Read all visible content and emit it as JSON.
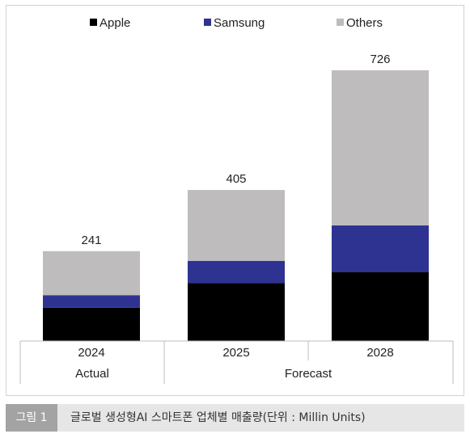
{
  "chart_data": {
    "type": "bar",
    "stacked": true,
    "categories": [
      "2024",
      "2025",
      "2028"
    ],
    "groups": [
      {
        "label": "Actual",
        "categories": [
          "2024"
        ]
      },
      {
        "label": "Forecast",
        "categories": [
          "2025",
          "2028"
        ]
      }
    ],
    "series": [
      {
        "name": "Apple",
        "color": "#000000",
        "values": [
          89,
          155,
          185
        ]
      },
      {
        "name": "Samsung",
        "color": "#2e3392",
        "values": [
          34,
          60,
          125
        ]
      },
      {
        "name": "Others",
        "color": "#bfbcbd",
        "values": [
          118,
          190,
          416
        ]
      }
    ],
    "totals": [
      "241",
      "405",
      "726"
    ],
    "ylim": [
      0,
      780
    ],
    "grid": false,
    "legend_position": "top"
  },
  "caption": {
    "tag": "그림 1",
    "text": "글로벌 생성형AI 스마트폰 업체별 매출량(단위 : Millin Units)"
  }
}
